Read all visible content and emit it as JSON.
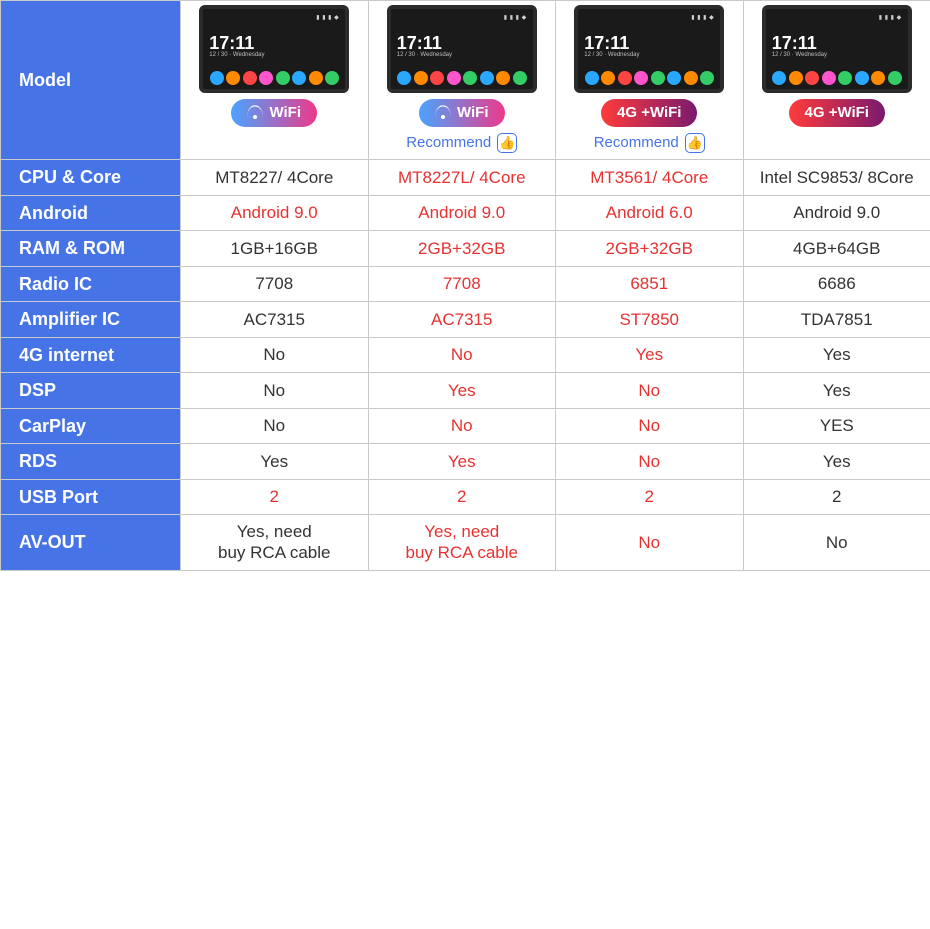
{
  "colors": {
    "header_bg": "#4674e7",
    "header_text": "#ffffff",
    "border": "#c9c9c9",
    "text_dark": "#333333",
    "text_red": "#e63232",
    "recommend_blue": "#4674e7",
    "badge_wifi_gradient": [
      "#4aa3ff",
      "#ec3a8b"
    ],
    "badge_4g_gradient": [
      "#ff3b3b",
      "#7a1a6e"
    ],
    "device_bg": "#1a1a1a",
    "dock_colors": [
      "#2aa7ff",
      "#ff8a00",
      "#ff4444",
      "#ff55cc",
      "#33cc66",
      "#2aa7ff",
      "#ff8a00",
      "#33cc66"
    ]
  },
  "device": {
    "time": "17:11",
    "sub": "12 / 30  ·  Wednesday"
  },
  "row_labels": {
    "model": "Model",
    "cpu": "CPU & Core",
    "android": "Android",
    "ram": "RAM & ROM",
    "radio": "Radio IC",
    "amp": "Amplifier IC",
    "fourg": "4G internet",
    "dsp": "DSP",
    "carplay": "CarPlay",
    "rds": "RDS",
    "usb": "USB Port",
    "avout": "AV-OUT"
  },
  "columns": [
    {
      "badge_type": "wifi",
      "badge_text": "WiFi",
      "recommend": false,
      "cpu": {
        "text": "MT8227/ 4Core",
        "red": false
      },
      "android": {
        "text": "Android 9.0",
        "red": true
      },
      "ram": {
        "text": "1GB+16GB",
        "red": false
      },
      "radio": {
        "text": "7708",
        "red": false
      },
      "amp": {
        "text": "AC7315",
        "red": false
      },
      "fourg": {
        "text": "No",
        "red": false
      },
      "dsp": {
        "text": "No",
        "red": false
      },
      "carplay": {
        "text": "No",
        "red": false
      },
      "rds": {
        "text": "Yes",
        "red": false
      },
      "usb": {
        "text": "2",
        "red": true
      },
      "avout": {
        "text": "Yes, need\nbuy RCA cable",
        "red": false
      }
    },
    {
      "badge_type": "wifi",
      "badge_text": "WiFi",
      "recommend": true,
      "recommend_text": "Recommend",
      "cpu": {
        "text": "MT8227L/ 4Core",
        "red": true
      },
      "android": {
        "text": "Android 9.0",
        "red": true
      },
      "ram": {
        "text": "2GB+32GB",
        "red": true
      },
      "radio": {
        "text": "7708",
        "red": true
      },
      "amp": {
        "text": "AC7315",
        "red": true
      },
      "fourg": {
        "text": "No",
        "red": true
      },
      "dsp": {
        "text": "Yes",
        "red": true
      },
      "carplay": {
        "text": "No",
        "red": true
      },
      "rds": {
        "text": "Yes",
        "red": true
      },
      "usb": {
        "text": "2",
        "red": true
      },
      "avout": {
        "text": "Yes, need\nbuy RCA cable",
        "red": true
      }
    },
    {
      "badge_type": "4g",
      "badge_text": "4G +WiFi",
      "recommend": true,
      "recommend_text": "Recommend",
      "cpu": {
        "text": "MT3561/ 4Core",
        "red": true
      },
      "android": {
        "text": "Android 6.0",
        "red": true
      },
      "ram": {
        "text": "2GB+32GB",
        "red": true
      },
      "radio": {
        "text": "6851",
        "red": true
      },
      "amp": {
        "text": "ST7850",
        "red": true
      },
      "fourg": {
        "text": "Yes",
        "red": true
      },
      "dsp": {
        "text": "No",
        "red": true
      },
      "carplay": {
        "text": "No",
        "red": true
      },
      "rds": {
        "text": "No",
        "red": true
      },
      "usb": {
        "text": "2",
        "red": true
      },
      "avout": {
        "text": "No",
        "red": true
      }
    },
    {
      "badge_type": "4g",
      "badge_text": "4G +WiFi",
      "recommend": false,
      "cpu": {
        "text": "Intel SC9853/ 8Core",
        "red": false
      },
      "android": {
        "text": "Android 9.0",
        "red": false
      },
      "ram": {
        "text": "4GB+64GB",
        "red": false
      },
      "radio": {
        "text": "6686",
        "red": false
      },
      "amp": {
        "text": "TDA7851",
        "red": false
      },
      "fourg": {
        "text": "Yes",
        "red": false
      },
      "dsp": {
        "text": "Yes",
        "red": false
      },
      "carplay": {
        "text": "YES",
        "red": false
      },
      "rds": {
        "text": "Yes",
        "red": false
      },
      "usb": {
        "text": "2",
        "red": false
      },
      "avout": {
        "text": "No",
        "red": false
      }
    }
  ]
}
